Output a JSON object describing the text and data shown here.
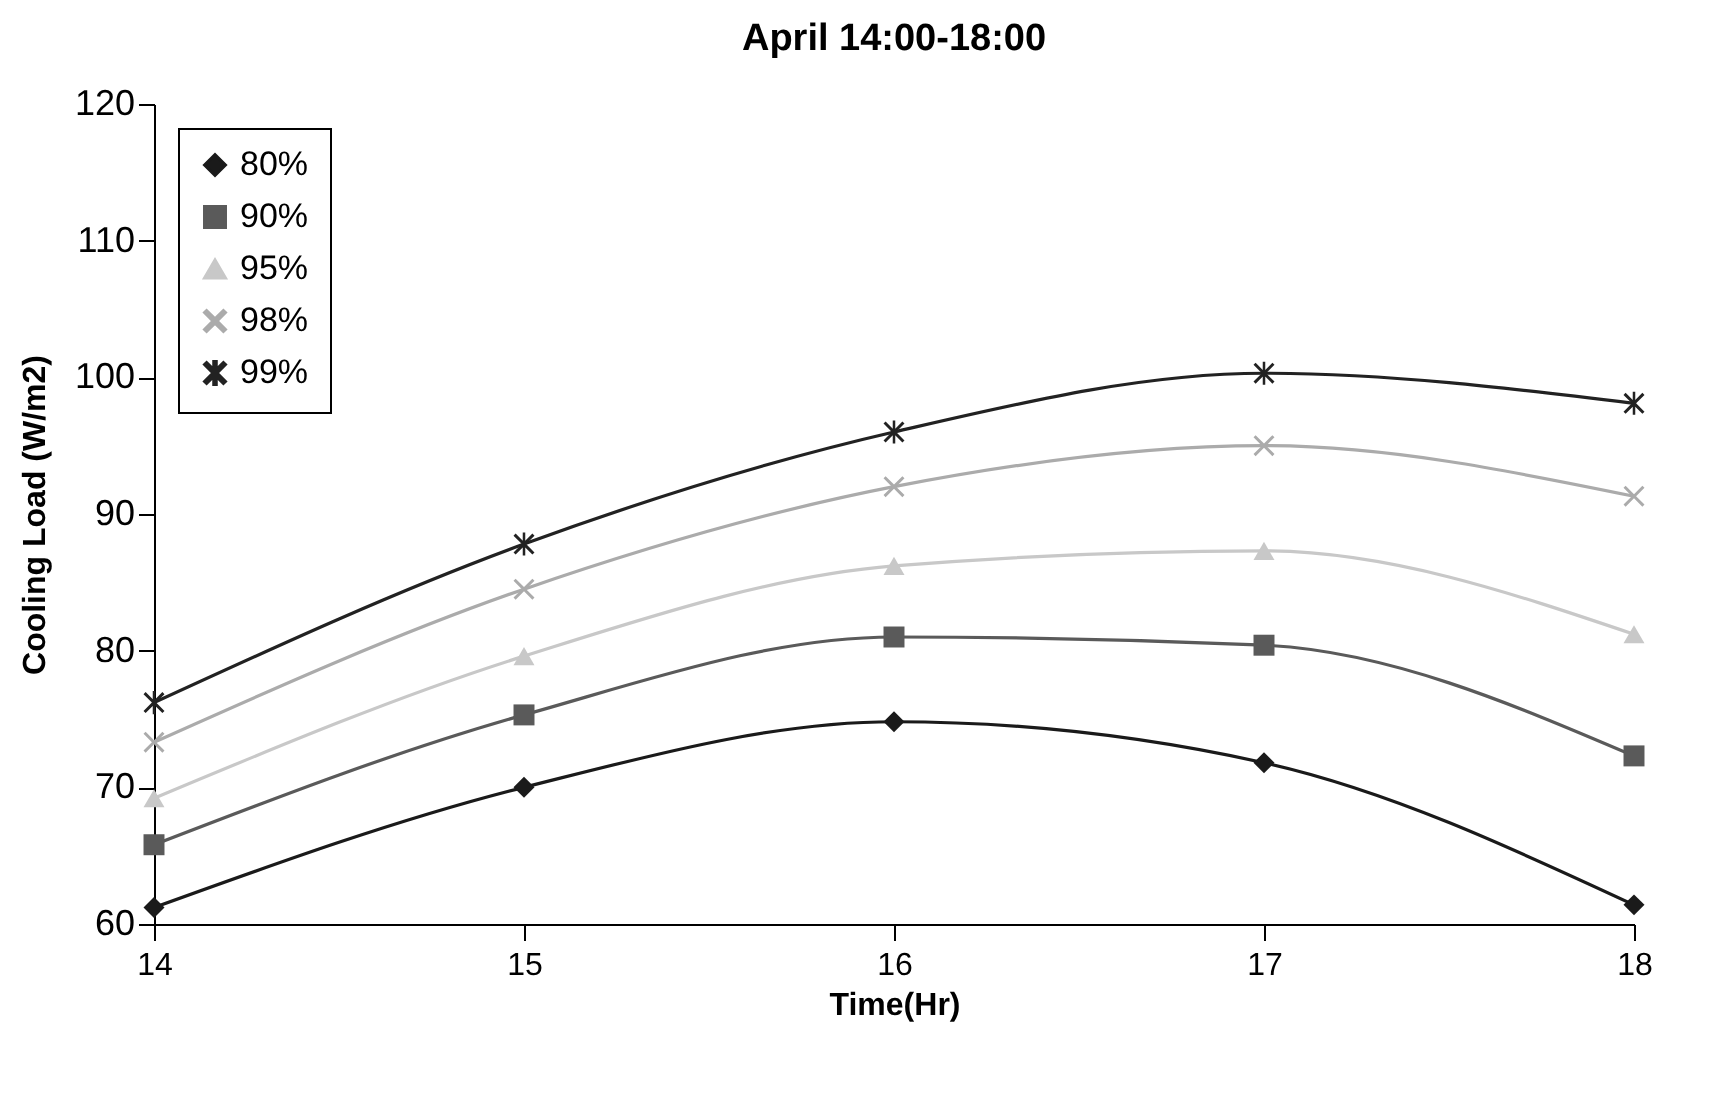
{
  "chart_data": {
    "type": "line",
    "title": "April 14:00-18:00",
    "xlabel": "Time(Hr)",
    "ylabel": "Cooling Load (W/m2)",
    "x": [
      14,
      15,
      16,
      17,
      18
    ],
    "xlim": [
      14,
      18
    ],
    "xticks": [
      14,
      15,
      16,
      17,
      18
    ],
    "ylim": [
      60,
      120
    ],
    "yticks": [
      60,
      70,
      80,
      90,
      100,
      110,
      120
    ],
    "grid": false,
    "legend": "top left",
    "line_style": "solid",
    "series": [
      {
        "name": "80%",
        "color": "#1a1a1a",
        "marker": "diamond",
        "values": [
          61.2,
          70,
          74.8,
          71.8,
          61.4
        ]
      },
      {
        "name": "90%",
        "color": "#5a5a5a",
        "marker": "square",
        "values": [
          65.8,
          75.3,
          81,
          80.4,
          72.3
        ]
      },
      {
        "name": "95%",
        "color": "#c8c8c8",
        "marker": "triangle",
        "values": [
          69.2,
          79.6,
          86.2,
          87.3,
          81.2
        ]
      },
      {
        "name": "98%",
        "color": "#ababab",
        "marker": "cross",
        "values": [
          73.3,
          84.5,
          92,
          95,
          91.3
        ]
      },
      {
        "name": "99%",
        "color": "#222222",
        "marker": "star",
        "values": [
          76.2,
          87.8,
          96,
          100.3,
          98.1
        ]
      }
    ]
  }
}
